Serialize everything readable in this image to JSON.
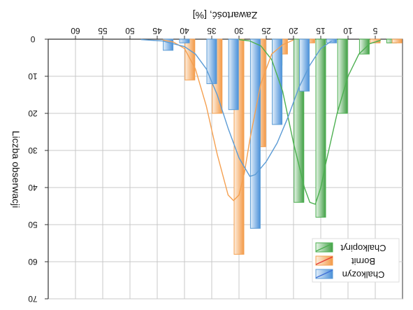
{
  "chart_data": {
    "type": "bar",
    "title": "",
    "orientation_note": "mirrored image; x axis on top, y axis increases downward",
    "xlabel": "Zawartość, [%]",
    "ylabel": "Liczba obserwacji",
    "xlim": [
      0,
      65
    ],
    "ylim": [
      0,
      70
    ],
    "x_ticks": [
      5,
      10,
      15,
      20,
      25,
      30,
      35,
      40,
      45,
      50,
      55,
      60
    ],
    "y_ticks": [
      0,
      10,
      20,
      30,
      40,
      50,
      60,
      70
    ],
    "grid": true,
    "legend_position": "bottom-right",
    "series": [
      {
        "name": "Chalkopiryt",
        "color": "#4caf50",
        "bars": [
          {
            "x": 2,
            "value": 1
          },
          {
            "x": 7,
            "value": 4
          },
          {
            "x": 11,
            "value": 20
          },
          {
            "x": 15,
            "value": 48
          },
          {
            "x": 19,
            "value": 44
          },
          {
            "x": 23,
            "value": 7
          }
        ],
        "curve": [
          [
            4,
            0.3
          ],
          [
            6,
            1.2
          ],
          [
            8,
            4
          ],
          [
            10,
            10
          ],
          [
            12,
            20
          ],
          [
            14,
            33
          ],
          [
            15,
            40
          ],
          [
            16,
            44.5
          ],
          [
            17,
            44
          ],
          [
            18,
            40
          ],
          [
            20,
            28
          ],
          [
            22,
            14
          ],
          [
            24,
            5.5
          ],
          [
            26,
            1.8
          ],
          [
            28,
            0.5
          ],
          [
            30,
            0.1
          ]
        ]
      },
      {
        "name": "Bornit",
        "color": "#f5a050",
        "bars": [
          {
            "x": 1,
            "value": 1
          },
          {
            "x": 5,
            "value": 1
          },
          {
            "x": 17,
            "value": 1
          },
          {
            "x": 22,
            "value": 4
          },
          {
            "x": 26,
            "value": 29
          },
          {
            "x": 30,
            "value": 58
          },
          {
            "x": 34,
            "value": 20
          },
          {
            "x": 39,
            "value": 11
          }
        ],
        "curve": [
          [
            20,
            0.2
          ],
          [
            22,
            1.5
          ],
          [
            24,
            4
          ],
          [
            26,
            12
          ],
          [
            28,
            27
          ],
          [
            29,
            36
          ],
          [
            30,
            42
          ],
          [
            31,
            43.5
          ],
          [
            32,
            42
          ],
          [
            34,
            31
          ],
          [
            36,
            18
          ],
          [
            38,
            8
          ],
          [
            40,
            2.5
          ],
          [
            42,
            0.8
          ],
          [
            44,
            0.2
          ]
        ]
      },
      {
        "name": "Chalkozyn",
        "color": "#5b9bd5",
        "bars": [
          {
            "x": 13,
            "value": 1
          },
          {
            "x": 18,
            "value": 14
          },
          {
            "x": 23,
            "value": 23
          },
          {
            "x": 27,
            "value": 51
          },
          {
            "x": 31,
            "value": 19
          },
          {
            "x": 35,
            "value": 12
          },
          {
            "x": 40,
            "value": 1
          },
          {
            "x": 43,
            "value": 3
          }
        ],
        "curve": [
          [
            13,
            0.5
          ],
          [
            15,
            2.5
          ],
          [
            17,
            7
          ],
          [
            19,
            13
          ],
          [
            21,
            21
          ],
          [
            23,
            28
          ],
          [
            25,
            33
          ],
          [
            27,
            36.5
          ],
          [
            28,
            37
          ],
          [
            30,
            32
          ],
          [
            32,
            24
          ],
          [
            34,
            15
          ],
          [
            36,
            8
          ],
          [
            38,
            4
          ],
          [
            40,
            2
          ],
          [
            44,
            0.5
          ],
          [
            48,
            0.1
          ]
        ]
      }
    ]
  }
}
